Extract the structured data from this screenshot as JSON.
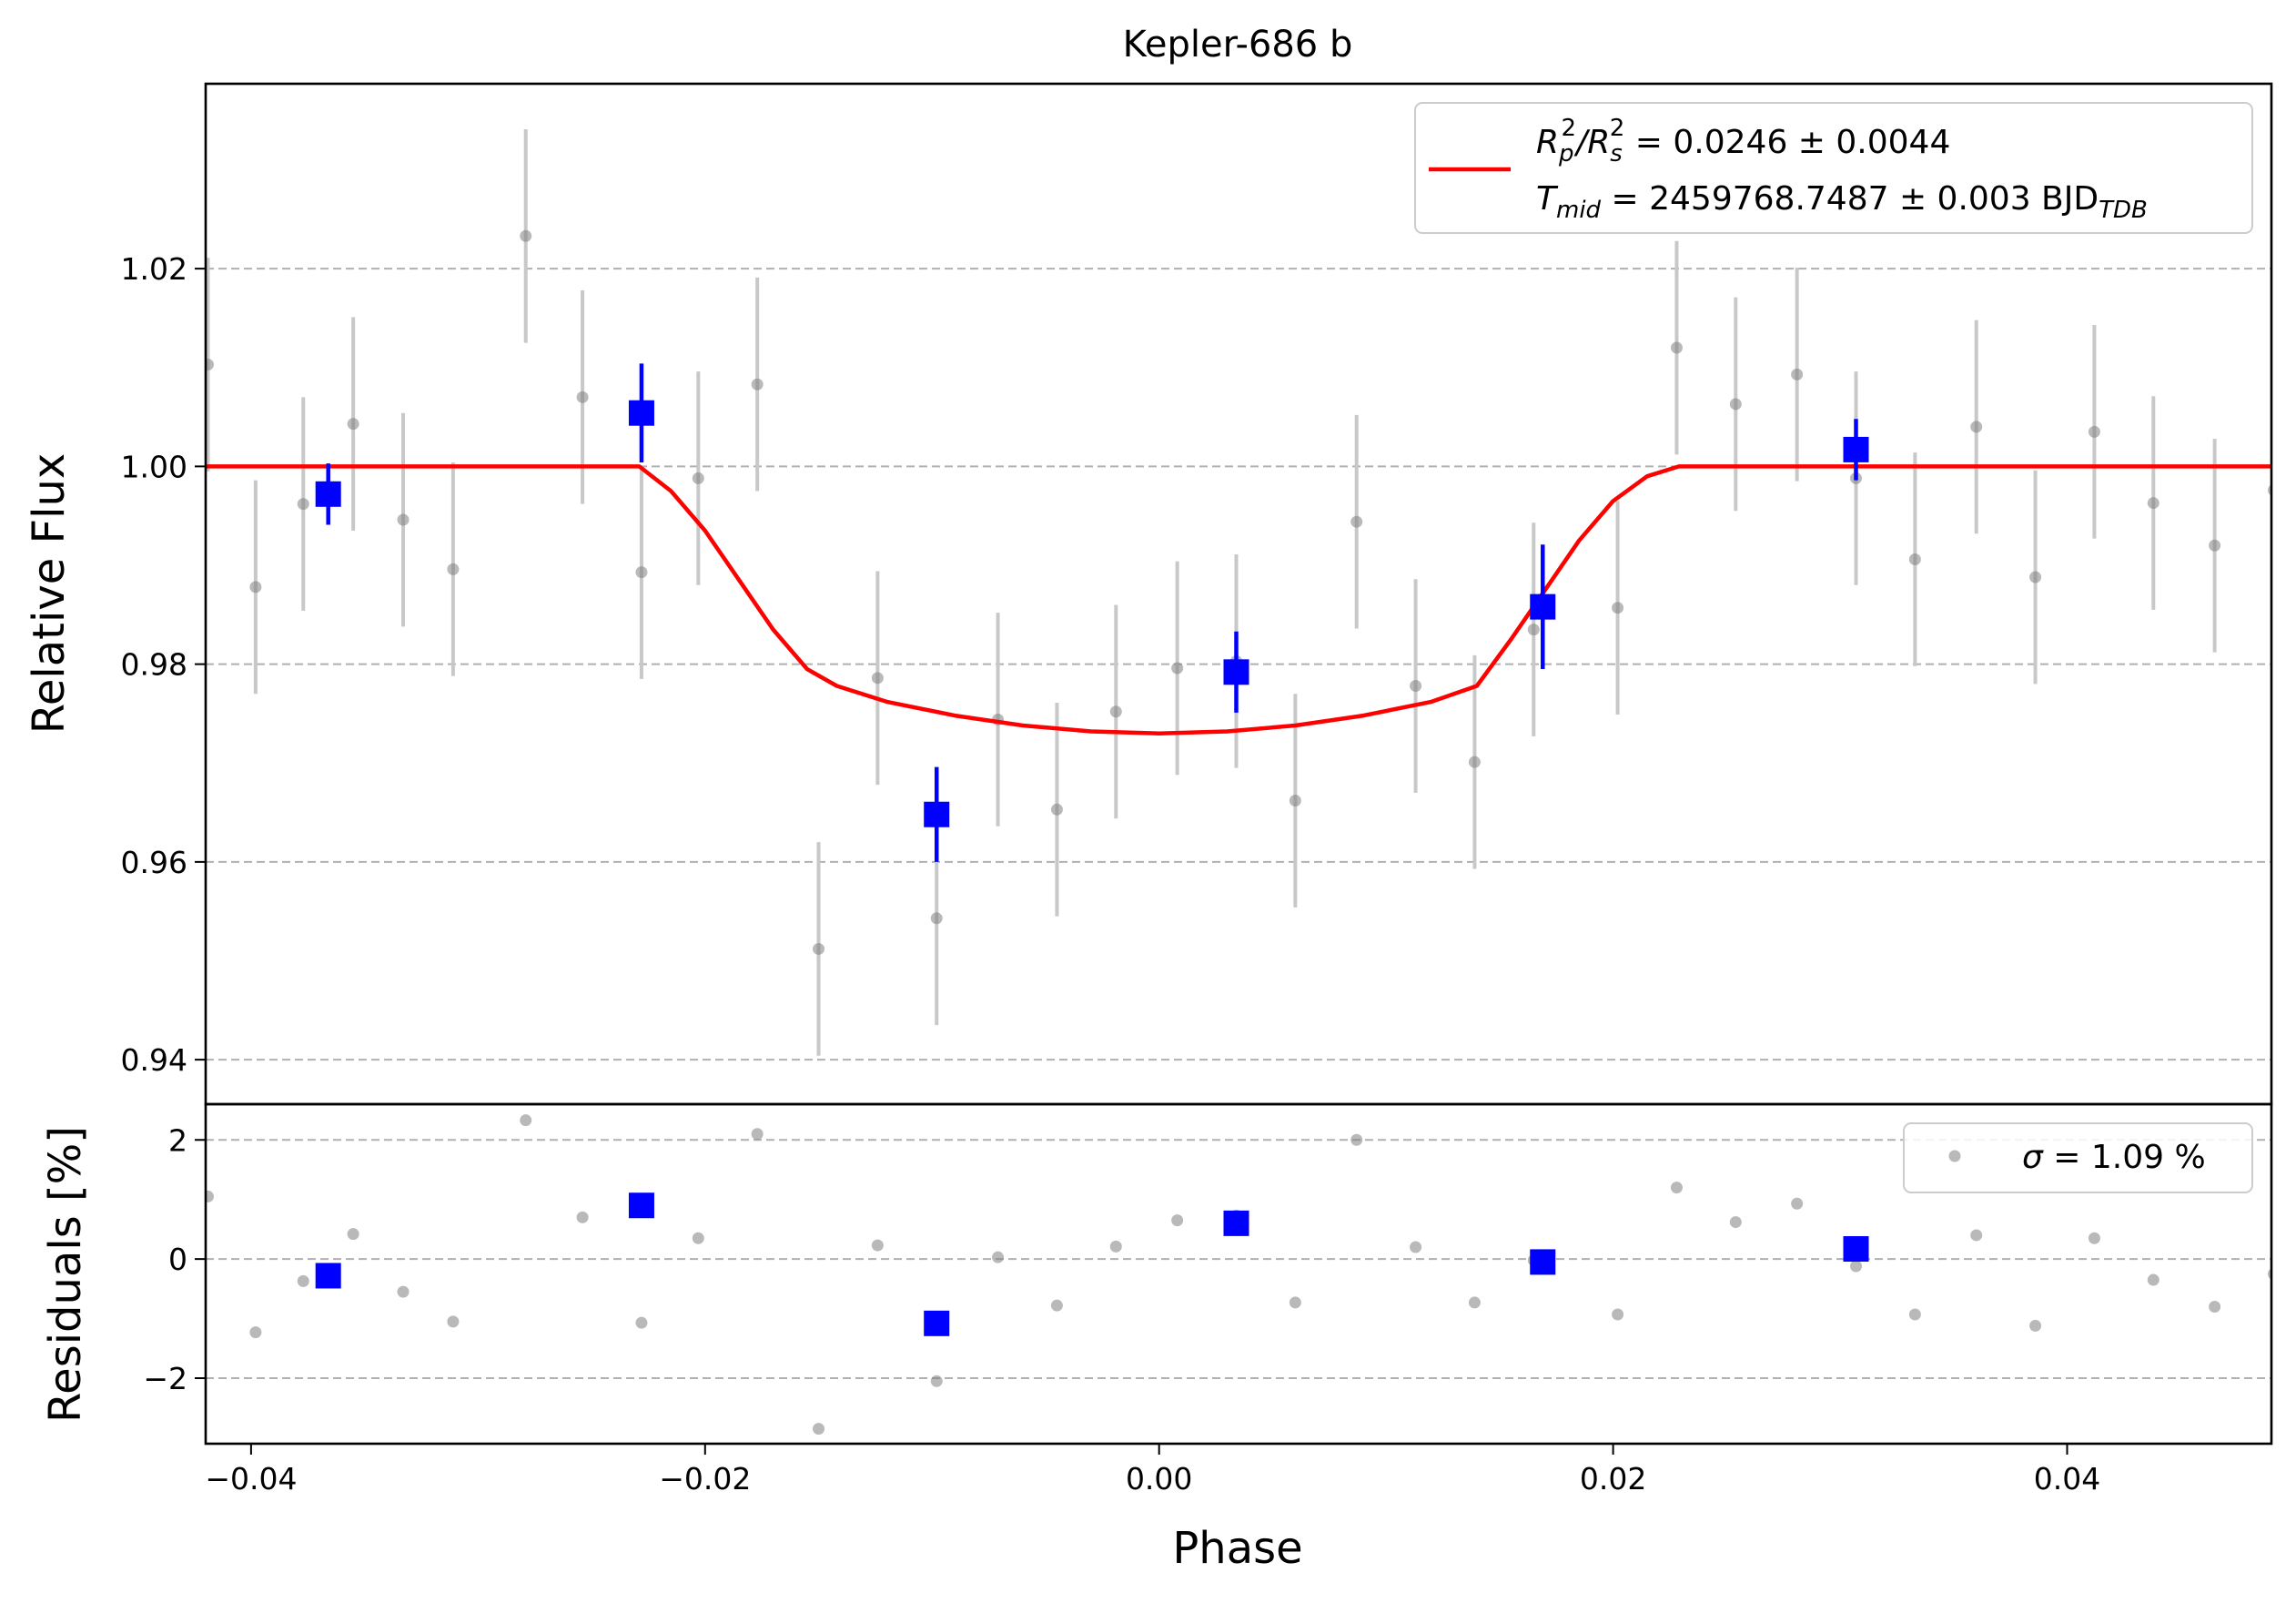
{
  "chart_data": [
    {
      "panel": "flux",
      "type": "scatter",
      "title": "Kepler-686 b",
      "xlabel": "",
      "ylabel": "Relative Flux",
      "xlim": [
        -0.042,
        0.049
      ],
      "ylim": [
        0.9355,
        1.0387
      ],
      "yticks": [
        0.94,
        0.96,
        0.98,
        1.0,
        1.02
      ],
      "ytick_labels": [
        "0.94",
        "0.96",
        "0.98",
        "1.00",
        "1.02"
      ],
      "grid": "horizontal dashed",
      "legend": {
        "placement": "top-right",
        "line1": {
          "main": "R",
          "sub_p": "p",
          "sup1": "2",
          "slash": "/R",
          "sub_s": "s",
          "sup2": "2",
          "rest": " = 0.0246 ± 0.0044"
        },
        "line2": {
          "main": "T",
          "sub": "mid",
          "rest": " = 2459768.7487 ± 0.003 BJD",
          "sub2": "TDB"
        }
      },
      "colors": {
        "raw": "#808080",
        "raw_err": "#c8c8c8",
        "binned": "#0000ff",
        "model": "#ff0000"
      },
      "series": [
        {
          "kind": "raw",
          "x": [
            -0.0419,
            -0.0398,
            -0.0377,
            -0.0355,
            -0.0333,
            -0.0311,
            -0.0279,
            -0.0254,
            -0.0228,
            -0.0203,
            -0.0177,
            -0.015,
            -0.0124,
            -0.0098,
            -0.0071,
            -0.0045,
            -0.0019,
            0.0008,
            0.0034,
            0.006,
            0.0087,
            0.0113,
            0.0139,
            0.0165,
            0.0202,
            0.0228,
            0.0254,
            0.0281,
            0.0307,
            0.0333,
            0.036,
            0.0386,
            0.0412,
            0.0438,
            0.0465,
            0.0491
          ],
          "y": [
            1.0103,
            0.9878,
            0.9962,
            1.0043,
            0.9946,
            0.9896,
            1.0233,
            1.007,
            0.9893,
            0.9988,
            1.0083,
            0.9512,
            0.9786,
            0.9543,
            0.9744,
            0.9653,
            0.9752,
            0.9796,
            0.9803,
            0.9662,
            0.9944,
            0.9778,
            0.9701,
            0.9835,
            0.9857,
            1.012,
            1.0063,
            1.0093,
            0.9988,
            0.9906,
            1.004,
            0.9888,
            1.0035,
            0.9963,
            0.992,
            0.9976
          ],
          "err": [
            0.0108,
            0.0108,
            0.0108,
            0.0108,
            0.0108,
            0.0108,
            0.0108,
            0.0108,
            0.0108,
            0.0108,
            0.0108,
            0.0108,
            0.0108,
            0.0108,
            0.0108,
            0.0108,
            0.0108,
            0.0108,
            0.0108,
            0.0108,
            0.0108,
            0.0108,
            0.0108,
            0.0108,
            0.0108,
            0.0108,
            0.0108,
            0.0108,
            0.0108,
            0.0108,
            0.0108,
            0.0108,
            0.0108,
            0.0108,
            0.0108,
            0.0108
          ]
        },
        {
          "kind": "binned",
          "x": [
            -0.0366,
            -0.0228,
            -0.0098,
            0.0034,
            0.0169,
            0.0307
          ],
          "y": [
            0.9972,
            1.0054,
            0.9648,
            0.9792,
            0.9858,
            1.0017
          ],
          "err": [
            0.0031,
            0.005,
            0.0048,
            0.0041,
            0.0063,
            0.0031
          ]
        },
        {
          "kind": "model",
          "x": [
            -0.042,
            -0.0229,
            -0.0215,
            -0.02,
            -0.0185,
            -0.017,
            -0.0155,
            -0.0142,
            -0.012,
            -0.009,
            -0.006,
            -0.003,
            0.0,
            0.003,
            0.006,
            0.009,
            0.012,
            0.014,
            0.0155,
            0.017,
            0.0185,
            0.02,
            0.0215,
            0.0229,
            0.049
          ],
          "y": [
            1.0,
            1.0,
            0.9975,
            0.9935,
            0.9885,
            0.9835,
            0.9795,
            0.9778,
            0.9762,
            0.9748,
            0.9738,
            0.9732,
            0.973,
            0.9732,
            0.9738,
            0.9748,
            0.9762,
            0.9778,
            0.9825,
            0.9875,
            0.9925,
            0.9965,
            0.999,
            1.0,
            1.0
          ]
        }
      ]
    },
    {
      "panel": "residuals",
      "type": "scatter",
      "xlabel": "Phase",
      "ylabel": "Residuals [%]",
      "xlim": [
        -0.042,
        0.049
      ],
      "ylim": [
        -3.1,
        2.6
      ],
      "xticks": [
        -0.04,
        -0.02,
        0.0,
        0.02,
        0.04
      ],
      "xtick_labels": [
        "−0.04",
        "−0.02",
        "0.00",
        "0.02",
        "0.04"
      ],
      "yticks": [
        -2,
        0,
        2
      ],
      "ytick_labels": [
        "−2",
        "0",
        "2"
      ],
      "grid": "horizontal dashed",
      "legend": {
        "placement": "top-right",
        "sigma_symbol": "σ",
        "text": " = 1.09 %"
      },
      "series": [
        {
          "kind": "raw",
          "x": [
            -0.0419,
            -0.0398,
            -0.0377,
            -0.0355,
            -0.0333,
            -0.0311,
            -0.0279,
            -0.0254,
            -0.0228,
            -0.0203,
            -0.0177,
            -0.015,
            -0.0124,
            -0.0098,
            -0.0071,
            -0.0045,
            -0.0019,
            0.0008,
            0.0034,
            0.006,
            0.0087,
            0.0113,
            0.0139,
            0.0165,
            0.0202,
            0.0228,
            0.0254,
            0.0281,
            0.0307,
            0.0333,
            0.036,
            0.0386,
            0.0412,
            0.0438,
            0.0465,
            0.0491
          ],
          "y": [
            1.05,
            -1.23,
            -0.37,
            0.42,
            -0.55,
            -1.05,
            2.33,
            0.7,
            -1.07,
            0.35,
            2.1,
            -2.85,
            0.23,
            -2.05,
            0.03,
            -0.78,
            0.21,
            0.65,
            0.73,
            -0.73,
            2.0,
            0.2,
            -0.73,
            -0.02,
            -0.93,
            1.2,
            0.62,
            0.93,
            -0.12,
            -0.93,
            0.4,
            -1.12,
            0.35,
            -0.35,
            -0.8,
            -0.25
          ]
        },
        {
          "kind": "binned",
          "x": [
            -0.0366,
            -0.0228,
            -0.0098,
            0.0034,
            0.0169,
            0.0307
          ],
          "y": [
            -0.28,
            0.9,
            -1.08,
            0.6,
            -0.05,
            0.17
          ]
        }
      ]
    }
  ]
}
